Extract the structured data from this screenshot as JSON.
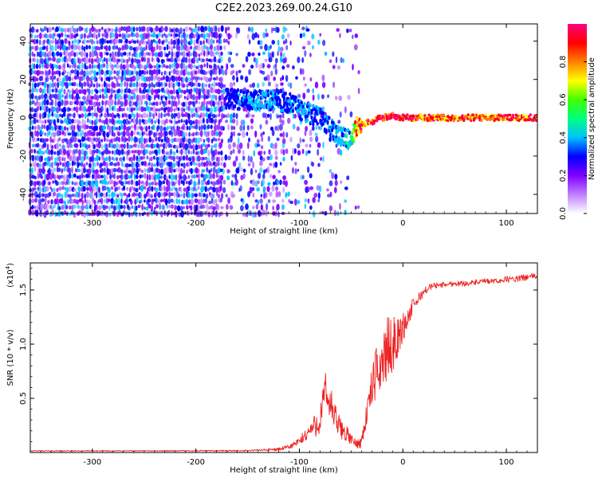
{
  "title": "C2E2.2023.269.00.24.G10",
  "chart_data": [
    {
      "type": "heatmap",
      "xlabel": "Height of straight line (km)",
      "ylabel": "Frequency (Hz)",
      "xlim": [
        -360,
        130
      ],
      "ylim": [
        -50,
        49
      ],
      "x_ticks": [
        -300,
        -200,
        -100,
        0,
        100
      ],
      "y_ticks": [
        -40,
        -20,
        0,
        20,
        40
      ],
      "colorbar": {
        "label": "Normalized spectral amplitude",
        "range": [
          0,
          1
        ],
        "ticks": [
          0.0,
          0.2,
          0.4,
          0.6,
          0.8
        ],
        "colors": [
          "#ffffff",
          "#c080ff",
          "#8000ff",
          "#0000ff",
          "#00c0ff",
          "#00ff80",
          "#40ff00",
          "#ffff00",
          "#ff8000",
          "#ff0000",
          "#ff0080"
        ]
      },
      "dominant_ridge": {
        "x": [
          -170,
          -150,
          -130,
          -110,
          -95,
          -80,
          -70,
          -60,
          -50,
          -45,
          -40,
          -30,
          -20,
          -10,
          0,
          20,
          50,
          80,
          100,
          130
        ],
        "frequency": [
          10,
          9,
          9,
          8,
          3,
          0,
          -5,
          -10,
          -12,
          -5,
          -4,
          -2,
          0,
          1,
          0,
          0,
          0,
          0,
          0,
          0
        ],
        "amplitude": [
          0.3,
          0.35,
          0.4,
          0.35,
          0.4,
          0.35,
          0.4,
          0.4,
          0.45,
          0.9,
          0.9,
          0.95,
          1.0,
          1.0,
          1.0,
          0.9,
          0.9,
          0.9,
          0.95,
          0.9
        ]
      },
      "background_noise_amplitude": 0.2
    },
    {
      "type": "line",
      "xlabel": "Height of straight line (km)",
      "ylabel": "SNR (10 * v/v)",
      "y_multiplier": "(x10",
      "y_multiplier_exp": "4",
      "y_multiplier_close": ")",
      "xlim": [
        -360,
        130
      ],
      "ylim": [
        0,
        1.75
      ],
      "x_ticks": [
        -300,
        -200,
        -100,
        0,
        100
      ],
      "y_ticks": [
        0.5,
        1.0,
        1.5
      ],
      "y_tick_labels": [
        "0.5",
        "1.0",
        "1.5"
      ],
      "color": "#ee2222",
      "series": [
        {
          "x": [
            -360,
            -300,
            -250,
            -200,
            -150,
            -120,
            -110,
            -100,
            -90,
            -80,
            -75,
            -70,
            -65,
            -60,
            -55,
            -50,
            -45,
            -40,
            -35,
            -30,
            -25,
            -20,
            -15,
            -10,
            -5,
            0,
            5,
            10,
            15,
            20,
            25,
            30,
            40,
            50,
            60,
            70,
            80,
            90,
            100,
            110,
            120,
            130
          ],
          "y": [
            0.015,
            0.015,
            0.015,
            0.016,
            0.017,
            0.03,
            0.05,
            0.1,
            0.2,
            0.3,
            0.55,
            0.45,
            0.3,
            0.22,
            0.18,
            0.12,
            0.08,
            0.1,
            0.35,
            0.6,
            0.75,
            0.85,
            0.95,
            1.0,
            1.05,
            1.15,
            1.25,
            1.35,
            1.42,
            1.48,
            1.52,
            1.54,
            1.55,
            1.56,
            1.56,
            1.57,
            1.58,
            1.58,
            1.6,
            1.6,
            1.62,
            1.63
          ],
          "noise": [
            0.004,
            0.004,
            0.004,
            0.005,
            0.006,
            0.015,
            0.02,
            0.04,
            0.08,
            0.14,
            0.2,
            0.18,
            0.14,
            0.1,
            0.08,
            0.05,
            0.04,
            0.06,
            0.12,
            0.18,
            0.25,
            0.3,
            0.3,
            0.25,
            0.2,
            0.14,
            0.1,
            0.08,
            0.05,
            0.04,
            0.03,
            0.03,
            0.025,
            0.025,
            0.025,
            0.025,
            0.025,
            0.025,
            0.03,
            0.03,
            0.03,
            0.03
          ]
        }
      ]
    }
  ]
}
